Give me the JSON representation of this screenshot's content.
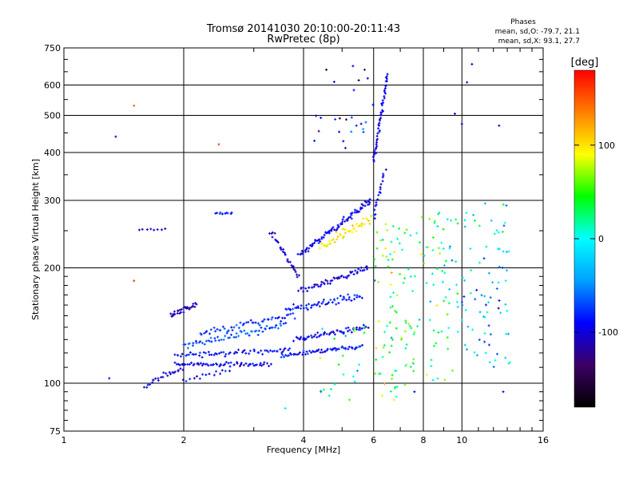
{
  "chart_data": {
    "type": "scatter",
    "title": "Tromsø 20141030 20:10:00-20:11:43",
    "subtitle": "RwPretec (8p)",
    "xlabel": "Frequency [MHz]",
    "ylabel": "Stationary phase Virtual Height [km]",
    "x_scale": "log",
    "y_scale": "log",
    "xlim": [
      1,
      16
    ],
    "ylim": [
      75,
      750
    ],
    "x_ticks": [
      1,
      2,
      4,
      6,
      8,
      10,
      16
    ],
    "y_ticks": [
      75,
      100,
      200,
      300,
      400,
      500,
      600,
      750
    ],
    "grid": true,
    "phase_box": {
      "heading": "Phases",
      "line_o": "mean, sd,O: -79.7, 21.1",
      "line_x": "mean, sd,X:  93.1, 27.7"
    },
    "colorbar": {
      "label": "[deg]",
      "ticks": [
        100,
        0,
        -100
      ],
      "range": [
        -180,
        180
      ],
      "colormap": [
        "#000000",
        "#3c0064",
        "#0000ff",
        "#00a0ff",
        "#00ffff",
        "#00ff00",
        "#ffff00",
        "#ff8000",
        "#ff0000"
      ]
    },
    "traces": [
      {
        "phase": -95,
        "x0": 1.9,
        "x1": 3.3,
        "y0": 112,
        "y1": 112,
        "n": 60,
        "jitter": 0.018
      },
      {
        "phase": -90,
        "x0": 1.9,
        "x1": 3.7,
        "y0": 118,
        "y1": 122,
        "n": 60,
        "jitter": 0.022
      },
      {
        "phase": -70,
        "x0": 2.0,
        "x1": 3.6,
        "y0": 125,
        "y1": 142,
        "n": 60,
        "jitter": 0.03
      },
      {
        "phase": -80,
        "x0": 2.2,
        "x1": 3.8,
        "y0": 135,
        "y1": 150,
        "n": 50,
        "jitter": 0.03
      },
      {
        "phase": -100,
        "x0": 1.6,
        "x1": 2.0,
        "y0": 98,
        "y1": 110,
        "n": 25,
        "jitter": 0.03
      },
      {
        "phase": -110,
        "x0": 1.85,
        "x1": 2.15,
        "y0": 150,
        "y1": 160,
        "n": 30,
        "jitter": 0.025
      },
      {
        "phase": -90,
        "x0": 3.5,
        "x1": 5.6,
        "y0": 118,
        "y1": 125,
        "n": 60,
        "jitter": 0.02
      },
      {
        "phase": -95,
        "x0": 3.8,
        "x1": 5.8,
        "y0": 130,
        "y1": 140,
        "n": 55,
        "jitter": 0.025
      },
      {
        "phase": -85,
        "x0": 3.6,
        "x1": 5.6,
        "y0": 155,
        "y1": 170,
        "n": 55,
        "jitter": 0.03
      },
      {
        "phase": -100,
        "x0": 3.9,
        "x1": 5.8,
        "y0": 175,
        "y1": 200,
        "n": 55,
        "jitter": 0.03
      },
      {
        "phase": -95,
        "x0": 3.9,
        "x1": 5.9,
        "y0": 215,
        "y1": 300,
        "n": 80,
        "jitter": 0.03
      },
      {
        "phase": -100,
        "x0": 3.3,
        "x1": 3.9,
        "y0": 250,
        "y1": 190,
        "n": 30,
        "jitter": 0.03
      },
      {
        "phase": 95,
        "x0": 4.4,
        "x1": 5.9,
        "y0": 225,
        "y1": 270,
        "n": 45,
        "jitter": 0.04
      },
      {
        "phase": -95,
        "x0": 6.0,
        "x1": 6.5,
        "y0": 380,
        "y1": 640,
        "n": 50,
        "jitter": 0.02
      },
      {
        "phase": -90,
        "x0": 6.0,
        "x1": 6.4,
        "y0": 270,
        "y1": 360,
        "n": 20,
        "jitter": 0.02
      },
      {
        "phase": -90,
        "x0": 2.0,
        "x1": 2.6,
        "y0": 102,
        "y1": 108,
        "n": 15,
        "jitter": 0.02
      },
      {
        "phase": -100,
        "x0": 1.55,
        "x1": 1.8,
        "y0": 252,
        "y1": 252,
        "n": 8,
        "jitter": 0.008
      },
      {
        "phase": -80,
        "x0": 2.4,
        "x1": 2.65,
        "y0": 278,
        "y1": 278,
        "n": 10,
        "jitter": 0.008
      }
    ],
    "clouds": [
      {
        "phase": 40,
        "x0": 6.0,
        "x1": 7.6,
        "y0": 90,
        "y1": 260,
        "n": 90
      },
      {
        "phase": 20,
        "x0": 7.6,
        "x1": 9.8,
        "y0": 100,
        "y1": 280,
        "n": 70
      },
      {
        "phase": -30,
        "x0": 10.0,
        "x1": 13.2,
        "y0": 110,
        "y1": 300,
        "n": 80
      },
      {
        "phase": -100,
        "x0": 4.2,
        "x1": 6.0,
        "y0": 400,
        "y1": 680,
        "n": 25
      },
      {
        "phase": 30,
        "x0": 4.4,
        "x1": 5.8,
        "y0": 90,
        "y1": 140,
        "n": 25
      }
    ],
    "points": [
      {
        "x": 1.5,
        "y": 530,
        "phase": 150
      },
      {
        "x": 1.5,
        "y": 185,
        "phase": 160
      },
      {
        "x": 1.35,
        "y": 440,
        "phase": -110
      },
      {
        "x": 1.3,
        "y": 103,
        "phase": -100
      },
      {
        "x": 2.45,
        "y": 420,
        "phase": 160
      },
      {
        "x": 12.7,
        "y": 95,
        "phase": -110
      },
      {
        "x": 12.4,
        "y": 470,
        "phase": -110
      },
      {
        "x": 10.3,
        "y": 610,
        "phase": -110
      },
      {
        "x": 10.0,
        "y": 475,
        "phase": -100
      },
      {
        "x": 9.6,
        "y": 505,
        "phase": -100
      },
      {
        "x": 10.6,
        "y": 680,
        "phase": -100
      },
      {
        "x": 3.6,
        "y": 86,
        "phase": -10
      },
      {
        "x": 7.6,
        "y": 95,
        "phase": -100
      }
    ]
  }
}
